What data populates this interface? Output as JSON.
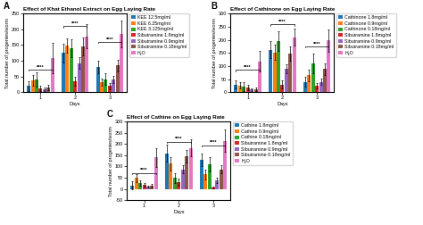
{
  "chart_data": [
    {
      "type": "bar",
      "panel_label": "A",
      "title": "Effect of Khat Ethanol Extract on Egg Laying Rate",
      "x_label": "Days",
      "y_label": "Total number of progenies/worm",
      "x": [
        1,
        2,
        3
      ],
      "xlim": [
        0.5,
        3.5
      ],
      "xticks": [
        1,
        2,
        3
      ],
      "ylim": [
        0,
        250
      ],
      "yticks": [
        0,
        50,
        100,
        150,
        200,
        250
      ],
      "legend": "upper left",
      "series": [
        {
          "name": "KEE 12.5mg/ml",
          "values": [
            20,
            125,
            80
          ],
          "errors": [
            15,
            30,
            20
          ]
        },
        {
          "name": "KEE 6.25mg/ml",
          "values": [
            38,
            148,
            32
          ],
          "errors": [
            18,
            22,
            12
          ]
        },
        {
          "name": "KEE 3.125mg/ml",
          "values": [
            40,
            140,
            42
          ],
          "errors": [
            22,
            28,
            18
          ]
        },
        {
          "name": "Sibutramine 1.8mg/ml",
          "values": [
            12,
            35,
            20
          ],
          "errors": [
            8,
            15,
            10
          ]
        },
        {
          "name": "Sibutramine 0.9mg/ml",
          "values": [
            10,
            93,
            40
          ],
          "errors": [
            5,
            18,
            12
          ]
        },
        {
          "name": "Sibutramine 0.18mg/ml",
          "values": [
            15,
            145,
            85
          ],
          "errors": [
            8,
            28,
            18
          ]
        },
        {
          "name": "H₂O",
          "values": [
            108,
            178,
            185
          ],
          "errors": [
            48,
            38,
            42
          ]
        }
      ],
      "annotations": [
        {
          "x": 1,
          "y": 72,
          "text": "****"
        },
        {
          "x": 2,
          "y": 210,
          "text": "****"
        },
        {
          "x": 3,
          "y": 160,
          "text": "****"
        }
      ]
    },
    {
      "type": "bar",
      "panel_label": "B",
      "title": "Effect of Cathinone on Egg Laying Rate",
      "x_label": "Days",
      "y_label": "Total number of progenies/worm",
      "x": [
        1,
        2,
        3
      ],
      "xlim": [
        0.5,
        3.5
      ],
      "xticks": [
        1,
        2,
        3
      ],
      "ylim": [
        0,
        300
      ],
      "yticks": [
        0,
        50,
        100,
        150,
        200,
        250,
        300
      ],
      "legend": "upper left",
      "series": [
        {
          "name": "Cathinone 1.8mg/ml",
          "values": [
            30,
            162,
            40
          ],
          "errors": [
            14,
            32,
            18
          ]
        },
        {
          "name": "Cathinone 0.9mg/ml",
          "values": [
            25,
            152,
            65
          ],
          "errors": [
            12,
            28,
            22
          ]
        },
        {
          "name": "Cathinone 0.18mg/ml",
          "values": [
            22,
            195,
            110
          ],
          "errors": [
            18,
            38,
            38
          ]
        },
        {
          "name": "Sibutramine 1.8mg/ml",
          "values": [
            18,
            30,
            25
          ],
          "errors": [
            9,
            16,
            10
          ]
        },
        {
          "name": "Sibutramine 0.9mg/ml",
          "values": [
            10,
            90,
            40
          ],
          "errors": [
            5,
            18,
            12
          ]
        },
        {
          "name": "Sibutramine 0.18mg/ml",
          "values": [
            12,
            148,
            88
          ],
          "errors": [
            7,
            28,
            22
          ]
        },
        {
          "name": "H₂O",
          "values": [
            118,
            210,
            197
          ],
          "errors": [
            38,
            32,
            42
          ]
        }
      ],
      "annotations": [
        {
          "x": 1,
          "y": 85,
          "text": "****"
        },
        {
          "x": 2,
          "y": 258,
          "text": "****"
        },
        {
          "x": 3,
          "y": 175,
          "text": "****"
        }
      ]
    },
    {
      "type": "bar",
      "panel_label": "C",
      "title": "Effect of Cathine on Egg Laying Rate",
      "x_label": "Days",
      "y_label": "Total number of progenies/worm",
      "x": [
        1,
        2,
        3
      ],
      "xlim": [
        0.5,
        3.5
      ],
      "xticks": [
        1,
        2,
        3
      ],
      "ylim": [
        -50,
        300
      ],
      "yticks": [
        -50,
        0,
        50,
        100,
        150,
        200,
        250,
        300
      ],
      "legend": "upper left",
      "series": [
        {
          "name": "Cathine 1.8mg/ml",
          "values": [
            15,
            158,
            128
          ],
          "errors": [
            18,
            38,
            28
          ]
        },
        {
          "name": "Cathine 0.9mg/ml",
          "values": [
            50,
            112,
            65
          ],
          "errors": [
            18,
            28,
            22
          ]
        },
        {
          "name": "Cathine 0.18mg/ml",
          "values": [
            25,
            50,
            110
          ],
          "errors": [
            12,
            22,
            32
          ]
        },
        {
          "name": "Sibutramine 1.8mg/ml",
          "values": [
            18,
            30,
            5
          ],
          "errors": [
            9,
            16,
            4
          ]
        },
        {
          "name": "Sibutramine 0.9mg/ml",
          "values": [
            10,
            88,
            40
          ],
          "errors": [
            5,
            18,
            12
          ]
        },
        {
          "name": "Sibutramine 0.18mg/ml",
          "values": [
            15,
            145,
            88
          ],
          "errors": [
            8,
            28,
            18
          ]
        },
        {
          "name": "H₂O",
          "values": [
            140,
            182,
            215
          ],
          "errors": [
            42,
            38,
            48
          ]
        }
      ],
      "annotations": [
        {
          "x": 1,
          "y": 72,
          "text": "****"
        },
        {
          "x": 2,
          "y": 210,
          "text": "****"
        },
        {
          "x": 3,
          "y": 195,
          "text": "****"
        }
      ]
    }
  ]
}
